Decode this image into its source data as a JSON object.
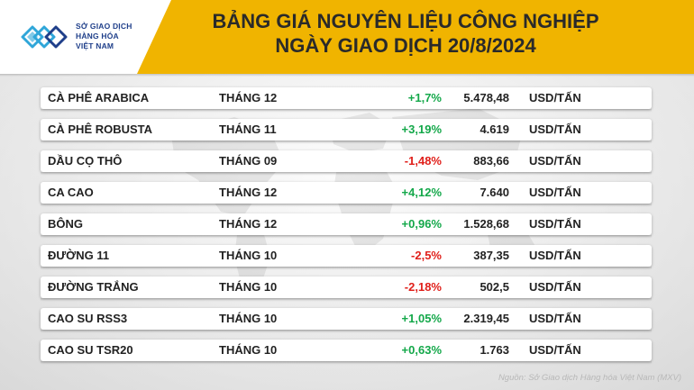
{
  "logo": {
    "line1": "SỞ GIAO DỊCH",
    "line2": "HÀNG HÓA",
    "line3": "VIỆT NAM"
  },
  "title": {
    "line1": "BẢNG GIÁ NGUYÊN LIỆU CÔNG NGHIỆP",
    "line2": "NGÀY GIAO DỊCH 20/8/2024"
  },
  "colors": {
    "header": "#f0b400",
    "positive": "#14a84a",
    "negative": "#e0201b",
    "logo": "#1f3f8a"
  },
  "rows": [
    {
      "name": "CÀ PHÊ ARABICA",
      "month": "THÁNG 12",
      "change": "+1,7%",
      "direction": "up",
      "price": "5.478,48",
      "unit": "USD/TẤN"
    },
    {
      "name": "CÀ PHÊ ROBUSTA",
      "month": "THÁNG 11",
      "change": "+3,19%",
      "direction": "up",
      "price": "4.619",
      "unit": "USD/TẤN"
    },
    {
      "name": "DẦU CỌ THÔ",
      "month": "THÁNG 09",
      "change": "-1,48%",
      "direction": "down",
      "price": "883,66",
      "unit": "USD/TẤN"
    },
    {
      "name": "CA CAO",
      "month": "THÁNG 12",
      "change": "+4,12%",
      "direction": "up",
      "price": "7.640",
      "unit": "USD/TẤN"
    },
    {
      "name": "BÔNG",
      "month": "THÁNG 12",
      "change": "+0,96%",
      "direction": "up",
      "price": "1.528,68",
      "unit": "USD/TẤN"
    },
    {
      "name": "ĐƯỜNG 11",
      "month": "THÁNG 10",
      "change": "-2,5%",
      "direction": "down",
      "price": "387,35",
      "unit": "USD/TẤN"
    },
    {
      "name": "ĐƯỜNG TRẮNG",
      "month": "THÁNG 10",
      "change": "-2,18%",
      "direction": "down",
      "price": "502,5",
      "unit": "USD/TẤN"
    },
    {
      "name": "CAO SU RSS3",
      "month": "THÁNG 10",
      "change": "+1,05%",
      "direction": "up",
      "price": "2.319,45",
      "unit": "USD/TẤN"
    },
    {
      "name": "CAO SU TSR20",
      "month": "THÁNG 10",
      "change": "+0,63%",
      "direction": "up",
      "price": "1.763",
      "unit": "USD/TẤN"
    }
  ],
  "source": "Nguồn: Sở Giao dịch Hàng hóa Việt Nam (MXV)"
}
